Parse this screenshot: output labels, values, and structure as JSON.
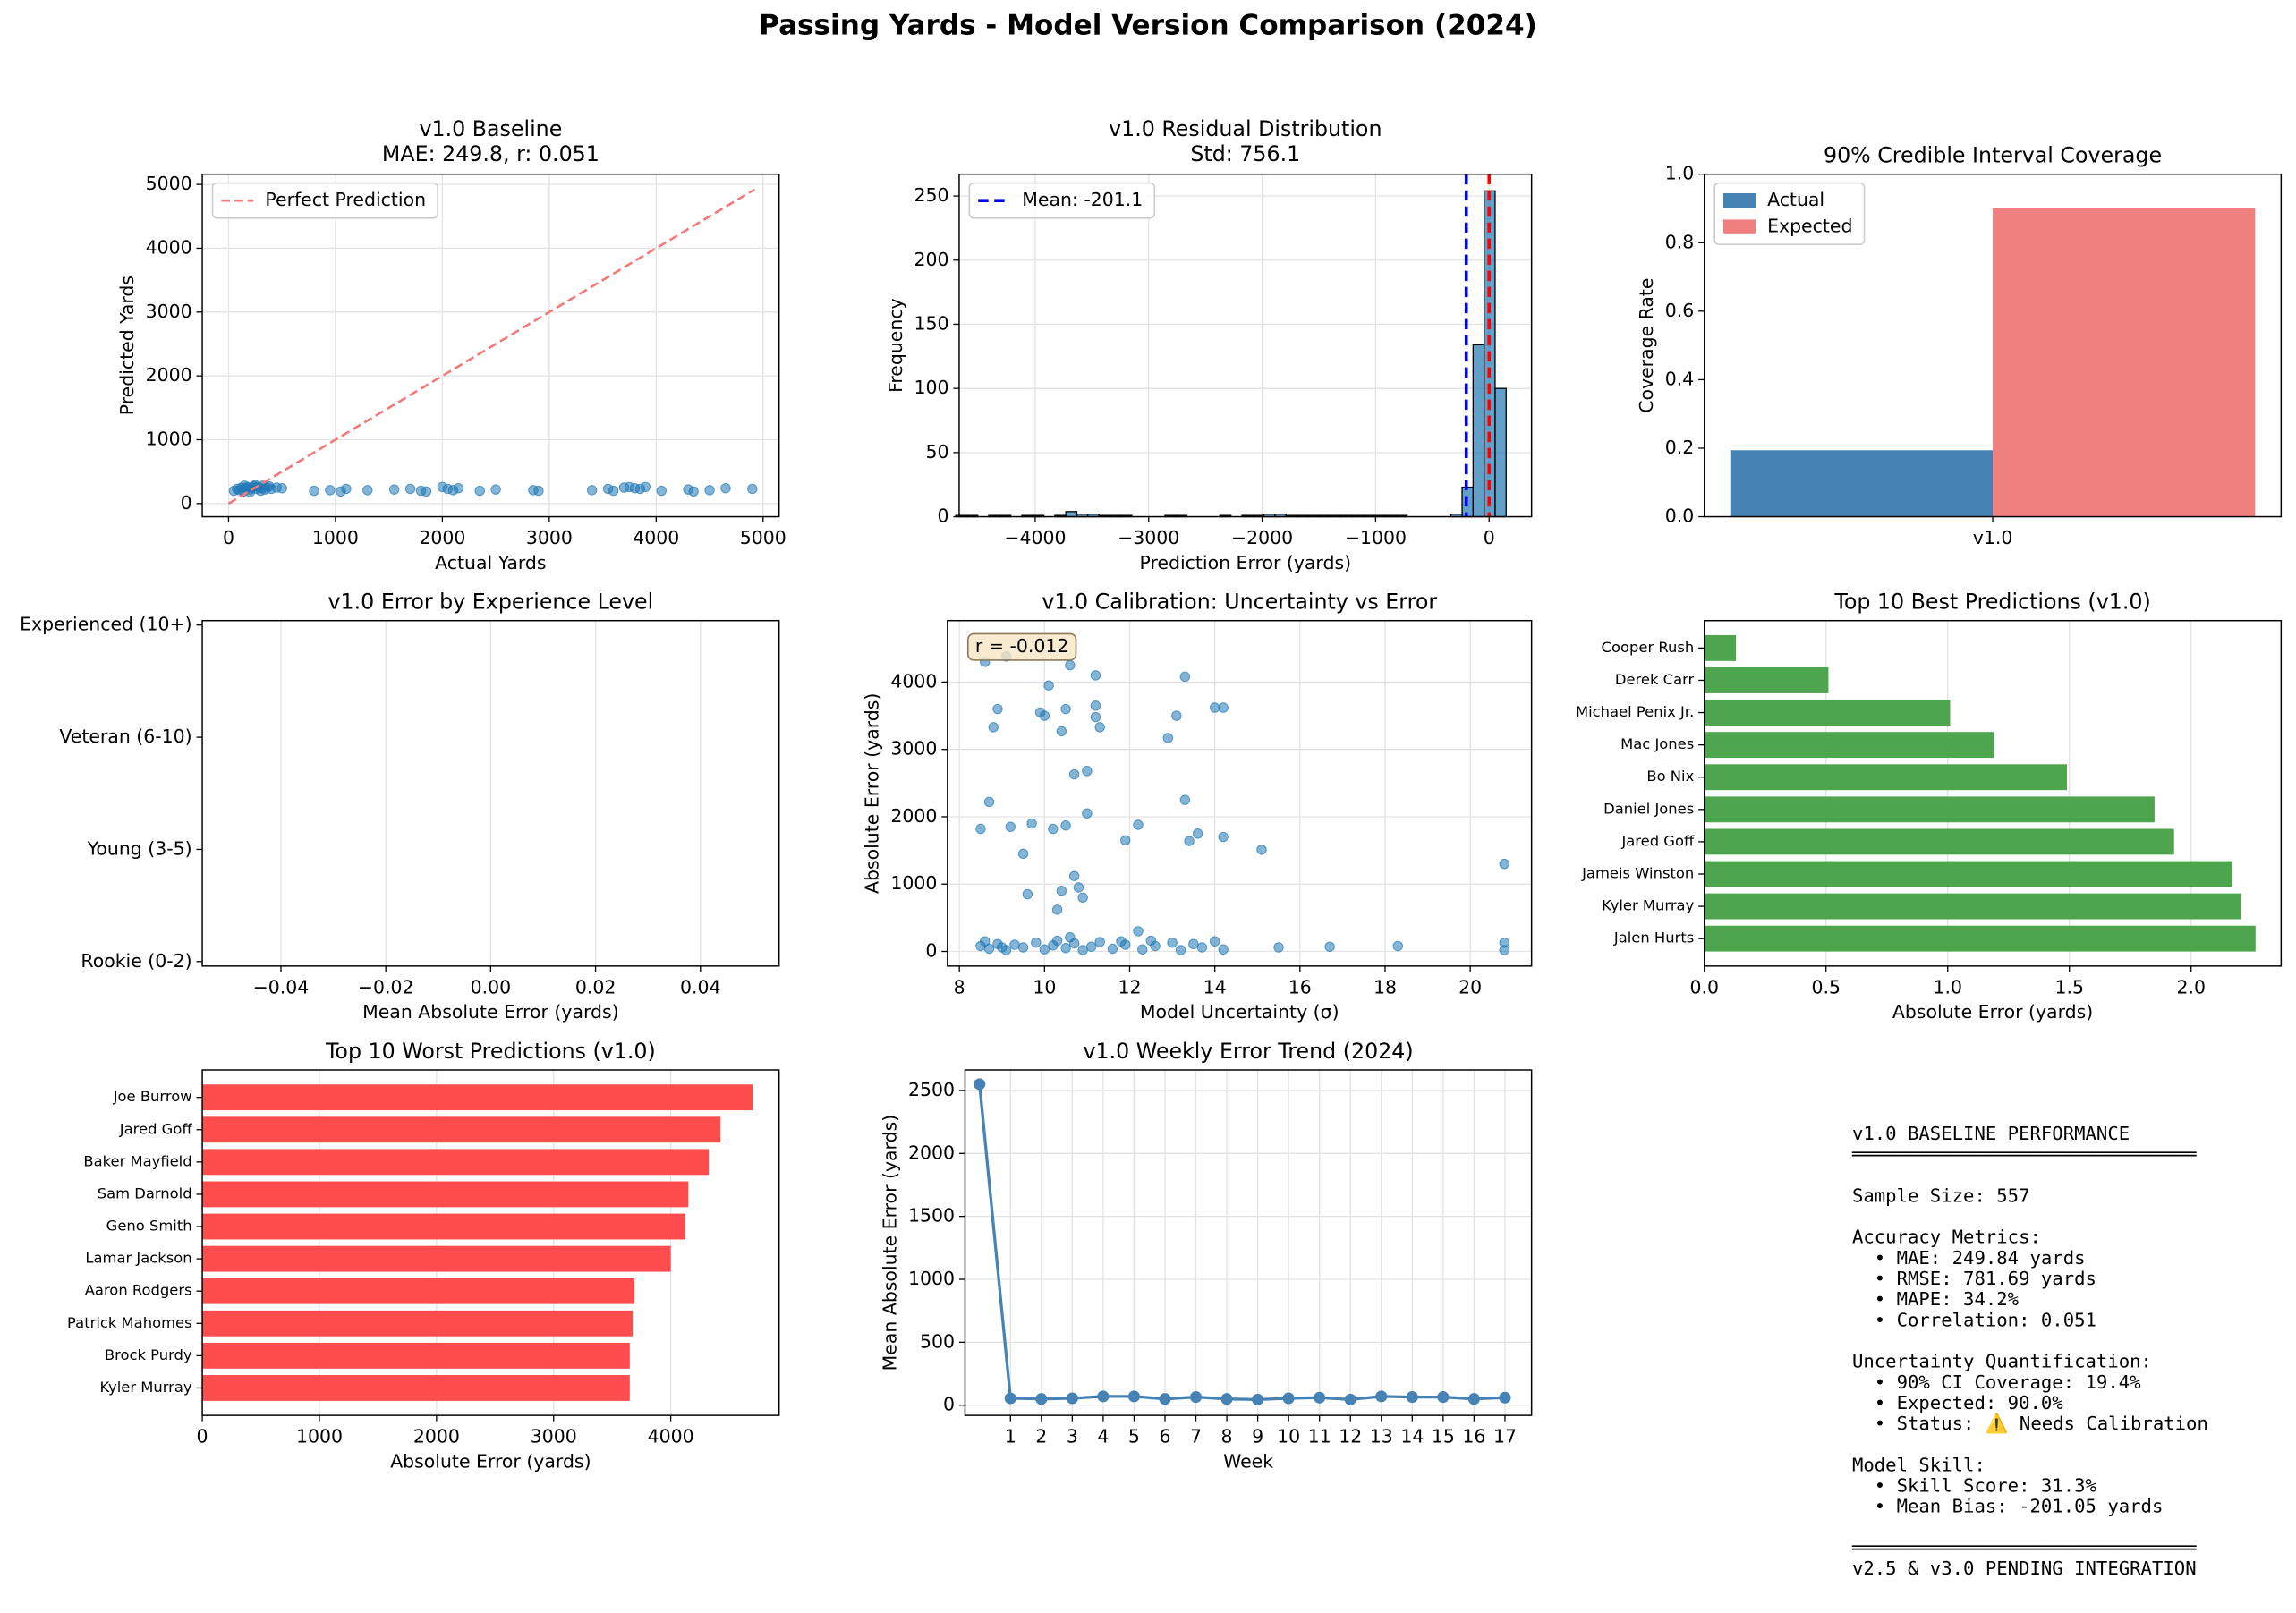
{
  "title": "Passing Yards - Model Version Comparison (2024)",
  "chart_data": [
    {
      "type": "scatter",
      "title": "v1.0 Baseline",
      "subtitle": "MAE: 249.8, r: 0.051",
      "xlabel": "Actual Yards",
      "ylabel": "Predicted Yards",
      "xlim": [
        -246,
        5150
      ],
      "ylim": [
        -206,
        5160
      ],
      "xticks": [
        0,
        1000,
        2000,
        3000,
        4000,
        5000
      ],
      "yticks": [
        0,
        1000,
        2000,
        3000,
        4000,
        5000
      ],
      "grid": true,
      "legend": "upper left",
      "series": [
        {
          "color": "#1f77b4",
          "x": [
            50,
            80,
            100,
            120,
            140,
            160,
            180,
            200,
            220,
            240,
            260,
            280,
            300,
            320,
            340,
            360,
            380,
            400,
            450,
            500,
            150,
            250,
            300,
            200,
            800,
            950,
            1050,
            1100,
            1300,
            1550,
            1700,
            1800,
            1850,
            2000,
            2050,
            2100,
            2150,
            2350,
            2500,
            2850,
            2900,
            3400,
            3550,
            3600,
            3700,
            3750,
            3800,
            3850,
            3900,
            4050,
            4300,
            4350,
            4500,
            4650,
            4900
          ],
          "values": [
            200,
            230,
            210,
            250,
            190,
            240,
            260,
            220,
            250,
            270,
            230,
            260,
            240,
            280,
            220,
            250,
            270,
            230,
            250,
            240,
            280,
            290,
            200,
            180,
            200,
            210,
            190,
            230,
            210,
            220,
            230,
            200,
            190,
            260,
            230,
            210,
            240,
            200,
            220,
            210,
            200,
            210,
            230,
            200,
            250,
            260,
            240,
            230,
            260,
            200,
            220,
            190,
            210,
            240,
            230
          ]
        },
        {
          "name": "Perfect Prediction",
          "color": "#f47a7a",
          "style": "dashed",
          "x": [
            0,
            4920
          ],
          "values": [
            0,
            4920
          ]
        }
      ]
    },
    {
      "type": "histogram",
      "title": "v1.0 Residual Distribution",
      "subtitle": "Std: 756.1",
      "xlabel": "Prediction Error (yards)",
      "ylabel": "Frequency",
      "xlim": [
        -4670,
        374
      ],
      "ylim": [
        0,
        267
      ],
      "xticks": [
        {
          "value": -4000,
          "label": "−4000"
        },
        {
          "value": -3000,
          "label": "−3000"
        },
        {
          "value": -2000,
          "label": "−2000"
        },
        {
          "value": -1000,
          "label": "−1000"
        },
        0
      ],
      "yticks": [
        0,
        50,
        100,
        150,
        200,
        250
      ],
      "grid": true,
      "legend": "upper left",
      "color": "#1f77b4",
      "bins": [
        -4700,
        -4603,
        -4506,
        -4409,
        -4312,
        -4215,
        -4118,
        -4021,
        -3924,
        -3827,
        -3730,
        -3633,
        -3536,
        -3439,
        -3342,
        -3245,
        -3148,
        -3051,
        -2954,
        -2857,
        -2760,
        -2663,
        -2566,
        -2469,
        -2372,
        -2275,
        -2178,
        -2081,
        -1984,
        -1887,
        -1790,
        -1693,
        -1596,
        -1499,
        -1402,
        -1305,
        -1208,
        -1111,
        -1014,
        -917,
        -820,
        -723,
        -626,
        -529,
        -432,
        -335,
        -238,
        -141,
        -44,
        53,
        150
      ],
      "values": [
        1,
        1,
        0,
        1,
        1,
        0,
        1,
        1,
        0,
        1,
        4,
        2,
        2,
        1,
        1,
        1,
        0,
        0,
        0,
        1,
        1,
        0,
        0,
        0,
        1,
        0,
        1,
        1,
        2,
        2,
        1,
        1,
        1,
        1,
        1,
        1,
        1,
        1,
        1,
        1,
        1,
        0,
        0,
        0,
        0,
        2,
        23,
        134,
        254,
        100
      ],
      "vlines": [
        {
          "name": "Mean: -201.1",
          "value": -201.1,
          "color": "#0000ff"
        },
        {
          "value": 0,
          "color": "#ff0000"
        }
      ]
    },
    {
      "type": "bar",
      "title": "90% Credible Interval Coverage",
      "ylabel": "Coverage Rate",
      "categories": [
        "v1.0"
      ],
      "ylim": [
        0,
        1
      ],
      "yticks": [
        {
          "value": 0,
          "label": "0.0"
        },
        0.2,
        0.4,
        0.6,
        0.8,
        {
          "value": 1,
          "label": "1.0"
        }
      ],
      "grid": false,
      "legend": "upper left",
      "series": [
        {
          "name": "Actual",
          "color": "#4682b4",
          "values": [
            0.194
          ]
        },
        {
          "name": "Expected",
          "color": "#f08080",
          "values": [
            0.9
          ]
        }
      ]
    },
    {
      "type": "hbar",
      "title": "v1.0 Error by Experience Level",
      "xlabel": "Mean Absolute Error (yards)",
      "categories": [
        "Experienced (10+)",
        "Veteran (6-10)",
        "Young (3-5)",
        "Rookie (0-2)"
      ],
      "values": [
        null,
        null,
        null,
        null
      ],
      "color": "#1f77b4",
      "xlim": [
        -0.055,
        0.055
      ],
      "xticks": [
        {
          "value": -0.04,
          "label": "−0.04"
        },
        {
          "value": -0.02,
          "label": "−0.02"
        },
        {
          "value": 0,
          "label": "0.00"
        },
        0.02,
        0.04
      ],
      "grid": true
    },
    {
      "type": "scatter",
      "title": "v1.0 Calibration: Uncertainty vs Error",
      "xlabel": "Model Uncertainty (σ)",
      "ylabel": "Absolute Error (yards)",
      "xlim": [
        7.72,
        21.44
      ],
      "ylim": [
        -217,
        4913
      ],
      "xticks": [
        8,
        10,
        12,
        14,
        16,
        18,
        20
      ],
      "yticks": [
        0,
        1000,
        2000,
        3000,
        4000
      ],
      "grid": true,
      "annotation": "r = -0.012",
      "series": [
        {
          "color": "#1f77b4",
          "x": [
            8.5,
            8.6,
            8.7,
            8.8,
            8.9,
            9.1,
            9.2,
            9.5,
            9.6,
            9.7,
            9.9,
            10.0,
            10.1,
            10.2,
            10.3,
            10.4,
            10.4,
            10.5,
            10.5,
            10.6,
            10.7,
            10.7,
            10.8,
            10.9,
            11.0,
            11.0,
            11.2,
            11.2,
            11.2,
            11.3,
            11.9,
            12.2,
            12.9,
            13.1,
            13.3,
            13.3,
            13.4,
            13.6,
            14.0,
            14.2,
            14.2,
            15.1,
            20.8,
            8.5,
            8.6,
            8.7,
            8.9,
            9.1,
            9.3,
            9.5,
            9.8,
            10.0,
            10.2,
            10.3,
            10.5,
            10.7,
            10.9,
            11.1,
            11.3,
            11.6,
            11.9,
            12.2,
            12.3,
            12.6,
            13.0,
            13.2,
            13.5,
            13.7,
            14.0,
            14.2,
            15.5,
            16.7,
            18.3,
            20.8,
            20.8,
            9.0,
            10.6,
            11.8,
            12.5
          ],
          "values": [
            1820,
            4300,
            2220,
            3330,
            3600,
            4380,
            1850,
            1450,
            850,
            1900,
            3550,
            3500,
            3950,
            1820,
            620,
            3270,
            900,
            3600,
            1870,
            4250,
            1120,
            2630,
            950,
            800,
            2050,
            2680,
            4100,
            3650,
            3480,
            3330,
            1650,
            1880,
            3170,
            3500,
            2250,
            4080,
            1640,
            1750,
            3620,
            3620,
            1700,
            1510,
            1300,
            80,
            150,
            40,
            110,
            20,
            100,
            60,
            130,
            30,
            90,
            160,
            50,
            120,
            20,
            70,
            140,
            40,
            100,
            300,
            30,
            80,
            130,
            20,
            110,
            60,
            150,
            30,
            60,
            70,
            80,
            20,
            130,
            60,
            210,
            150,
            160
          ]
        }
      ]
    },
    {
      "type": "hbar",
      "title": "Top 10 Best Predictions (v1.0)",
      "xlabel": "Absolute Error (yards)",
      "categories": [
        "Cooper Rush",
        "Derek Carr",
        "Michael Penix Jr.",
        "Mac Jones",
        "Bo Nix",
        "Daniel Jones",
        "Jared Goff",
        "Jameis Winston",
        "Kyler Murray",
        "Jalen Hurts"
      ],
      "values": [
        0.13,
        0.51,
        1.01,
        1.19,
        1.49,
        1.85,
        1.93,
        2.17,
        2.205,
        2.265
      ],
      "color": "#4da64d",
      "xlim": [
        0,
        2.37
      ],
      "xticks": [
        {
          "value": 0,
          "label": "0.0"
        },
        0.5,
        {
          "value": 1,
          "label": "1.0"
        },
        1.5,
        {
          "value": 2,
          "label": "2.0"
        }
      ],
      "grid": true
    },
    {
      "type": "hbar",
      "title": "Top 10 Worst Predictions (v1.0)",
      "xlabel": "Absolute Error (yards)",
      "categories": [
        "Joe Burrow",
        "Jared Goff",
        "Baker Mayfield",
        "Sam Darnold",
        "Geno Smith",
        "Lamar Jackson",
        "Aaron Rodgers",
        "Patrick Mahomes",
        "Brock Purdy",
        "Kyler Murray"
      ],
      "values": [
        4700,
        4425,
        4325,
        4150,
        4125,
        4000,
        3690,
        3675,
        3650,
        3650
      ],
      "color": "#ff4d4d",
      "xlim": [
        0,
        4925
      ],
      "xticks": [
        0,
        1000,
        2000,
        3000,
        4000
      ],
      "grid": true
    },
    {
      "type": "line",
      "title": "v1.0 Weekly Error Trend (2024)",
      "xlabel": "Week",
      "ylabel": "Mean Absolute Error (yards)",
      "x": [
        0,
        1,
        2,
        3,
        4,
        5,
        6,
        7,
        8,
        9,
        10,
        11,
        12,
        13,
        14,
        15,
        16,
        17
      ],
      "xlim": [
        -0.47,
        17.86
      ],
      "ylim": [
        -81,
        2663
      ],
      "xticks": [
        1,
        2,
        3,
        4,
        5,
        6,
        7,
        8,
        9,
        10,
        11,
        12,
        13,
        14,
        15,
        16,
        17
      ],
      "yticks": [
        0,
        500,
        1000,
        1500,
        2000,
        2500
      ],
      "grid": true,
      "series": [
        {
          "color": "#4682b4",
          "values": [
            2550,
            55,
            50,
            55,
            70,
            70,
            50,
            65,
            50,
            45,
            55,
            60,
            45,
            70,
            65,
            65,
            50,
            60
          ]
        }
      ]
    },
    {
      "type": "text",
      "blocks": [
        [
          "v1.0 BASELINE PERFORMANCE",
          "═══════════════════════════════"
        ],
        [
          "Sample Size: 557"
        ],
        [
          "Accuracy Metrics:",
          "  • MAE: 249.84 yards",
          "  • RMSE: 781.69 yards",
          "  • MAPE: 34.2%",
          "  • Correlation: 0.051"
        ],
        [
          "Uncertainty Quantification:",
          "  • 90% CI Coverage: 19.4%",
          "  • Expected: 90.0%",
          "  • Status: ⚠️ Needs Calibration"
        ],
        [
          "Model Skill:",
          "  • Skill Score: 31.3%",
          "  • Mean Bias: -201.05 yards"
        ],
        [
          "═══════════════════════════════",
          "v2.5 & v3.0 PENDING INTEGRATION"
        ]
      ]
    }
  ]
}
